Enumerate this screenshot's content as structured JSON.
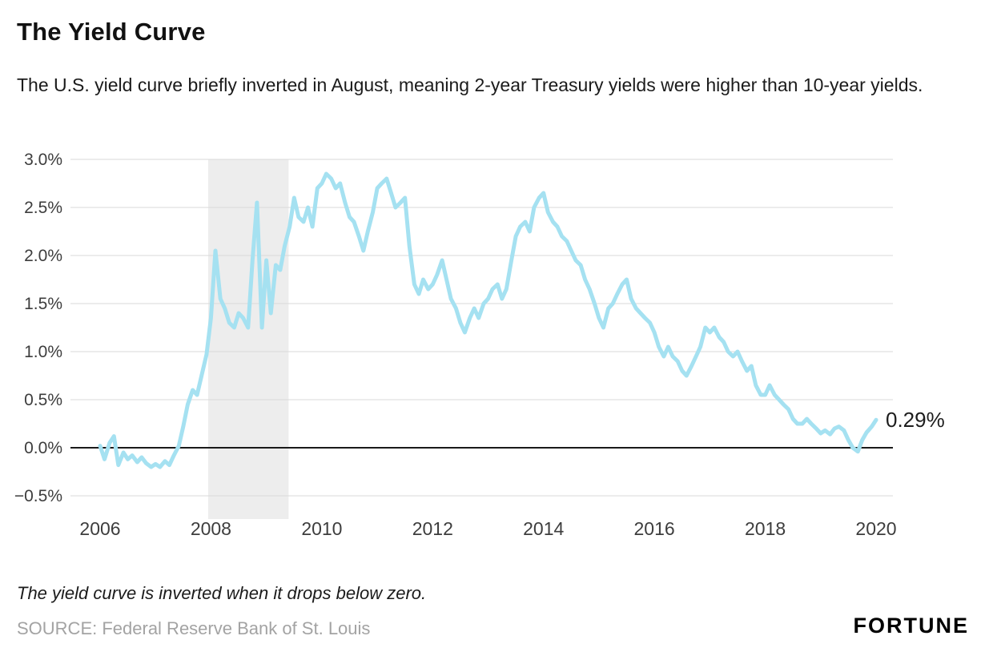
{
  "header": {
    "title": "The Yield Curve",
    "subtitle": "The U.S. yield curve briefly inverted in August, meaning 2-year Treasury yields were higher than 10-year yields."
  },
  "chart_data": {
    "type": "line",
    "title": "The Yield Curve",
    "xlabel": "",
    "ylabel": "",
    "xlim": [
      2006,
      2020
    ],
    "ylim": [
      -0.5,
      3.0
    ],
    "grid": true,
    "grid_color": "#d9d9d9",
    "line_color": "#a5e1f1",
    "axis_text_color": "#3d3d3d",
    "y_ticks": [
      {
        "value": 3.0,
        "label": "3.0%"
      },
      {
        "value": 2.5,
        "label": "2.5%"
      },
      {
        "value": 2.0,
        "label": "2.0%"
      },
      {
        "value": 1.5,
        "label": "1.5%"
      },
      {
        "value": 1.0,
        "label": "1.0%"
      },
      {
        "value": 0.5,
        "label": "0.5%"
      },
      {
        "value": 0.0,
        "label": "0.0%"
      },
      {
        "value": -0.5,
        "label": "−0.5%"
      }
    ],
    "x_ticks": [
      {
        "value": 2006,
        "label": "2006"
      },
      {
        "value": 2008,
        "label": "2008"
      },
      {
        "value": 2010,
        "label": "2010"
      },
      {
        "value": 2012,
        "label": "2012"
      },
      {
        "value": 2014,
        "label": "2014"
      },
      {
        "value": 2016,
        "label": "2016"
      },
      {
        "value": 2018,
        "label": "2018"
      },
      {
        "value": 2020,
        "label": "2020"
      }
    ],
    "shaded_region": {
      "x0": 2007.95,
      "x1": 2009.4,
      "color": "#ededed"
    },
    "zero_line": {
      "value": 0,
      "color": "#1a1a1a"
    },
    "end_label": "0.29%",
    "points": [
      [
        2006.0,
        0.02
      ],
      [
        2006.08,
        -0.12
      ],
      [
        2006.17,
        0.05
      ],
      [
        2006.25,
        0.12
      ],
      [
        2006.33,
        -0.18
      ],
      [
        2006.42,
        -0.05
      ],
      [
        2006.5,
        -0.12
      ],
      [
        2006.58,
        -0.08
      ],
      [
        2006.67,
        -0.15
      ],
      [
        2006.75,
        -0.1
      ],
      [
        2006.83,
        -0.16
      ],
      [
        2006.92,
        -0.2
      ],
      [
        2007.0,
        -0.17
      ],
      [
        2007.08,
        -0.2
      ],
      [
        2007.17,
        -0.14
      ],
      [
        2007.25,
        -0.18
      ],
      [
        2007.33,
        -0.08
      ],
      [
        2007.42,
        0.02
      ],
      [
        2007.5,
        0.22
      ],
      [
        2007.58,
        0.45
      ],
      [
        2007.67,
        0.6
      ],
      [
        2007.75,
        0.55
      ],
      [
        2007.83,
        0.75
      ],
      [
        2007.92,
        0.97
      ],
      [
        2008.0,
        1.35
      ],
      [
        2008.08,
        2.05
      ],
      [
        2008.17,
        1.55
      ],
      [
        2008.25,
        1.45
      ],
      [
        2008.33,
        1.3
      ],
      [
        2008.42,
        1.25
      ],
      [
        2008.5,
        1.4
      ],
      [
        2008.58,
        1.35
      ],
      [
        2008.67,
        1.25
      ],
      [
        2008.75,
        1.95
      ],
      [
        2008.83,
        2.55
      ],
      [
        2008.92,
        1.25
      ],
      [
        2009.0,
        1.95
      ],
      [
        2009.08,
        1.4
      ],
      [
        2009.17,
        1.9
      ],
      [
        2009.25,
        1.85
      ],
      [
        2009.33,
        2.1
      ],
      [
        2009.42,
        2.3
      ],
      [
        2009.5,
        2.6
      ],
      [
        2009.58,
        2.4
      ],
      [
        2009.67,
        2.35
      ],
      [
        2009.75,
        2.5
      ],
      [
        2009.83,
        2.3
      ],
      [
        2009.92,
        2.7
      ],
      [
        2010.0,
        2.75
      ],
      [
        2010.08,
        2.85
      ],
      [
        2010.17,
        2.8
      ],
      [
        2010.25,
        2.7
      ],
      [
        2010.33,
        2.75
      ],
      [
        2010.42,
        2.55
      ],
      [
        2010.5,
        2.4
      ],
      [
        2010.58,
        2.35
      ],
      [
        2010.67,
        2.2
      ],
      [
        2010.75,
        2.05
      ],
      [
        2010.83,
        2.25
      ],
      [
        2010.92,
        2.45
      ],
      [
        2011.0,
        2.7
      ],
      [
        2011.08,
        2.75
      ],
      [
        2011.17,
        2.8
      ],
      [
        2011.25,
        2.65
      ],
      [
        2011.33,
        2.5
      ],
      [
        2011.42,
        2.55
      ],
      [
        2011.5,
        2.6
      ],
      [
        2011.58,
        2.1
      ],
      [
        2011.67,
        1.7
      ],
      [
        2011.75,
        1.6
      ],
      [
        2011.83,
        1.75
      ],
      [
        2011.92,
        1.65
      ],
      [
        2012.0,
        1.7
      ],
      [
        2012.08,
        1.8
      ],
      [
        2012.17,
        1.95
      ],
      [
        2012.25,
        1.75
      ],
      [
        2012.33,
        1.55
      ],
      [
        2012.42,
        1.45
      ],
      [
        2012.5,
        1.3
      ],
      [
        2012.58,
        1.2
      ],
      [
        2012.67,
        1.35
      ],
      [
        2012.75,
        1.45
      ],
      [
        2012.83,
        1.35
      ],
      [
        2012.92,
        1.5
      ],
      [
        2013.0,
        1.55
      ],
      [
        2013.08,
        1.65
      ],
      [
        2013.17,
        1.7
      ],
      [
        2013.25,
        1.55
      ],
      [
        2013.33,
        1.65
      ],
      [
        2013.42,
        1.95
      ],
      [
        2013.5,
        2.2
      ],
      [
        2013.58,
        2.3
      ],
      [
        2013.67,
        2.35
      ],
      [
        2013.75,
        2.25
      ],
      [
        2013.83,
        2.5
      ],
      [
        2013.92,
        2.6
      ],
      [
        2014.0,
        2.65
      ],
      [
        2014.08,
        2.45
      ],
      [
        2014.17,
        2.35
      ],
      [
        2014.25,
        2.3
      ],
      [
        2014.33,
        2.2
      ],
      [
        2014.42,
        2.15
      ],
      [
        2014.5,
        2.05
      ],
      [
        2014.58,
        1.95
      ],
      [
        2014.67,
        1.9
      ],
      [
        2014.75,
        1.75
      ],
      [
        2014.83,
        1.65
      ],
      [
        2014.92,
        1.5
      ],
      [
        2015.0,
        1.35
      ],
      [
        2015.08,
        1.25
      ],
      [
        2015.17,
        1.45
      ],
      [
        2015.25,
        1.5
      ],
      [
        2015.33,
        1.6
      ],
      [
        2015.42,
        1.7
      ],
      [
        2015.5,
        1.75
      ],
      [
        2015.58,
        1.55
      ],
      [
        2015.67,
        1.45
      ],
      [
        2015.75,
        1.4
      ],
      [
        2015.83,
        1.35
      ],
      [
        2015.92,
        1.3
      ],
      [
        2016.0,
        1.2
      ],
      [
        2016.08,
        1.05
      ],
      [
        2016.17,
        0.95
      ],
      [
        2016.25,
        1.05
      ],
      [
        2016.33,
        0.95
      ],
      [
        2016.42,
        0.9
      ],
      [
        2016.5,
        0.8
      ],
      [
        2016.58,
        0.75
      ],
      [
        2016.67,
        0.85
      ],
      [
        2016.75,
        0.95
      ],
      [
        2016.83,
        1.05
      ],
      [
        2016.92,
        1.25
      ],
      [
        2017.0,
        1.2
      ],
      [
        2017.08,
        1.25
      ],
      [
        2017.17,
        1.15
      ],
      [
        2017.25,
        1.1
      ],
      [
        2017.33,
        1.0
      ],
      [
        2017.42,
        0.95
      ],
      [
        2017.5,
        1.0
      ],
      [
        2017.58,
        0.9
      ],
      [
        2017.67,
        0.8
      ],
      [
        2017.75,
        0.85
      ],
      [
        2017.83,
        0.65
      ],
      [
        2017.92,
        0.55
      ],
      [
        2018.0,
        0.55
      ],
      [
        2018.08,
        0.65
      ],
      [
        2018.17,
        0.55
      ],
      [
        2018.25,
        0.5
      ],
      [
        2018.33,
        0.45
      ],
      [
        2018.42,
        0.4
      ],
      [
        2018.5,
        0.3
      ],
      [
        2018.58,
        0.25
      ],
      [
        2018.67,
        0.25
      ],
      [
        2018.75,
        0.3
      ],
      [
        2018.83,
        0.25
      ],
      [
        2018.92,
        0.2
      ],
      [
        2019.0,
        0.15
      ],
      [
        2019.08,
        0.18
      ],
      [
        2019.17,
        0.14
      ],
      [
        2019.25,
        0.2
      ],
      [
        2019.33,
        0.22
      ],
      [
        2019.42,
        0.18
      ],
      [
        2019.5,
        0.08
      ],
      [
        2019.58,
        0.0
      ],
      [
        2019.67,
        -0.04
      ],
      [
        2019.75,
        0.08
      ],
      [
        2019.83,
        0.16
      ],
      [
        2019.92,
        0.22
      ],
      [
        2020.0,
        0.29
      ]
    ]
  },
  "footer": {
    "note": "The yield curve is inverted when it drops below zero.",
    "source": "SOURCE: Federal Reserve Bank of St. Louis",
    "brand": "FORTUNE"
  }
}
